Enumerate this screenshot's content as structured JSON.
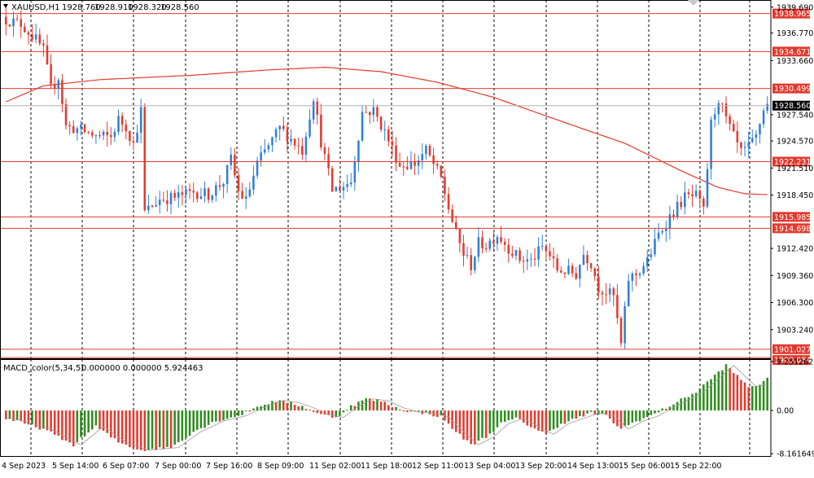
{
  "symbol": {
    "label": "XAUUSD,H1",
    "open": "1928.760",
    "high": "1928.910",
    "low": "1928.320",
    "close": "1928.560"
  },
  "macd": {
    "label": "MACD_color(5,34,5)",
    "values_text": "0.000000 0.000000 5.924463",
    "axis_labels": [
      "9.251262",
      "0.00",
      "-8.161649"
    ]
  },
  "colors": {
    "bull": "#2f7fd6",
    "bear": "#e23a2e",
    "hist_up": "#2e8b1e",
    "hist_down": "#e23a2e",
    "level_line": "#e23a2e",
    "ma": "#e23a2e",
    "grid": "#000000",
    "current_price_bg": "#000000"
  },
  "chart_data": {
    "type": "candlestick",
    "timeframe": "H1",
    "price_axis_labels": [
      "1939.690",
      "1936.770",
      "1933.660",
      "1927.540",
      "1924.570",
      "1921.510",
      "1918.450",
      "1912.420",
      "1909.360",
      "1906.300",
      "1903.240"
    ],
    "price_range": [
      1900.0,
      1940.5
    ],
    "time_axis_labels": [
      "4 Sep 2023",
      "5 Sep 14:00",
      "6 Sep 07:00",
      "7 Sep 00:00",
      "7 Sep 16:00",
      "8 Sep 09:00",
      "11 Sep 02:00",
      "11 Sep 18:00",
      "12 Sep 11:00",
      "13 Sep 04:00",
      "13 Sep 20:00",
      "14 Sep 13:00",
      "15 Sep 06:00",
      "15 Sep 22:00"
    ],
    "horizontal_levels": [
      {
        "price": 1938.965,
        "label": "1938.965"
      },
      {
        "price": 1934.671,
        "label": "1934.671"
      },
      {
        "price": 1930.499,
        "label": "1930.499"
      },
      {
        "price": 1922.231,
        "label": "1922.231"
      },
      {
        "price": 1915.985,
        "label": "1915.985"
      },
      {
        "price": 1914.698,
        "label": "1914.698"
      },
      {
        "price": 1901.027,
        "label": "1901.027"
      },
      {
        "price": 1900.084,
        "label": "1900.084"
      }
    ],
    "current_price": {
      "price": 1928.56,
      "label": "1928.560"
    },
    "close_path": [
      [
        0,
        1938.3
      ],
      [
        4,
        1937.8
      ],
      [
        8,
        1936.0
      ],
      [
        10,
        1934.8
      ],
      [
        12,
        1930.4
      ],
      [
        14,
        1931.8
      ],
      [
        16,
        1926.2
      ],
      [
        20,
        1925.8
      ],
      [
        24,
        1925.1
      ],
      [
        28,
        1925.0
      ],
      [
        30,
        1927.0
      ],
      [
        32,
        1926.2
      ],
      [
        34,
        1924.2
      ],
      [
        36,
        1928.0
      ],
      [
        37,
        1916.5
      ],
      [
        41,
        1918.0
      ],
      [
        45,
        1918.2
      ],
      [
        50,
        1918.8
      ],
      [
        54,
        1918.5
      ],
      [
        58,
        1920.0
      ],
      [
        60,
        1922.5
      ],
      [
        62,
        1918.8
      ],
      [
        64,
        1917.8
      ],
      [
        67,
        1922.0
      ],
      [
        70,
        1924.0
      ],
      [
        73,
        1926.0
      ],
      [
        76,
        1924.8
      ],
      [
        79,
        1923.5
      ],
      [
        82,
        1929.6
      ],
      [
        84,
        1924.5
      ],
      [
        87,
        1919.0
      ],
      [
        90,
        1919.5
      ],
      [
        92,
        1920.0
      ],
      [
        95,
        1927.8
      ],
      [
        98,
        1928.0
      ],
      [
        101,
        1925.6
      ],
      [
        105,
        1921.8
      ],
      [
        109,
        1922.0
      ],
      [
        112,
        1923.5
      ],
      [
        116,
        1920.3
      ],
      [
        118,
        1917.0
      ],
      [
        120,
        1914.0
      ],
      [
        122,
        1911.8
      ],
      [
        124,
        1910.5
      ],
      [
        126,
        1913.0
      ],
      [
        128,
        1912.8
      ],
      [
        131,
        1914.0
      ],
      [
        134,
        1912.5
      ],
      [
        137,
        1911.2
      ],
      [
        140,
        1911.0
      ],
      [
        143,
        1912.5
      ],
      [
        145,
        1911.6
      ],
      [
        147,
        1910.0
      ],
      [
        150,
        1909.8
      ],
      [
        152,
        1909.5
      ],
      [
        154,
        1911.8
      ],
      [
        156,
        1910.8
      ],
      [
        158,
        1908.0
      ],
      [
        160,
        1907.5
      ],
      [
        162,
        1907.0
      ],
      [
        164,
        1901.5
      ],
      [
        166,
        1909.0
      ],
      [
        168,
        1909.5
      ],
      [
        171,
        1911.0
      ],
      [
        174,
        1914.0
      ],
      [
        177,
        1916.0
      ],
      [
        181,
        1918.2
      ],
      [
        184,
        1918.3
      ],
      [
        186,
        1916.6
      ],
      [
        188,
        1926.5
      ],
      [
        190,
        1929.4
      ],
      [
        192,
        1927.0
      ],
      [
        194,
        1925.0
      ],
      [
        196,
        1923.2
      ],
      [
        198,
        1923.8
      ],
      [
        200,
        1925.0
      ],
      [
        202,
        1928.2
      ],
      [
        203,
        1928.6
      ]
    ],
    "moving_average_path": [
      [
        0,
        1929.0
      ],
      [
        10,
        1930.8
      ],
      [
        25,
        1931.5
      ],
      [
        50,
        1932.0
      ],
      [
        70,
        1932.6
      ],
      [
        85,
        1932.9
      ],
      [
        100,
        1932.4
      ],
      [
        115,
        1931.2
      ],
      [
        130,
        1929.5
      ],
      [
        150,
        1926.5
      ],
      [
        165,
        1924.3
      ],
      [
        180,
        1921.2
      ],
      [
        190,
        1919.3
      ],
      [
        197,
        1918.6
      ],
      [
        203,
        1918.5
      ]
    ],
    "macd_histogram_path": [
      [
        0,
        -1.5
      ],
      [
        10,
        -3.5
      ],
      [
        18,
        -6.5
      ],
      [
        24,
        -3.0
      ],
      [
        30,
        -6.0
      ],
      [
        36,
        -7.5
      ],
      [
        44,
        -7.0
      ],
      [
        50,
        -4.0
      ],
      [
        56,
        -2.0
      ],
      [
        62,
        -1.0
      ],
      [
        68,
        1.0
      ],
      [
        72,
        1.8
      ],
      [
        76,
        1.5
      ],
      [
        80,
        0.5
      ],
      [
        84,
        -0.8
      ],
      [
        88,
        -1.3
      ],
      [
        92,
        0.8
      ],
      [
        96,
        2.2
      ],
      [
        100,
        1.8
      ],
      [
        104,
        0.5
      ],
      [
        108,
        -0.3
      ],
      [
        112,
        -0.5
      ],
      [
        116,
        -1.2
      ],
      [
        120,
        -4.0
      ],
      [
        124,
        -6.5
      ],
      [
        128,
        -5.0
      ],
      [
        132,
        -2.5
      ],
      [
        136,
        -1.5
      ],
      [
        140,
        -3.0
      ],
      [
        144,
        -4.5
      ],
      [
        148,
        -2.5
      ],
      [
        152,
        -1.5
      ],
      [
        156,
        -0.5
      ],
      [
        160,
        -1.0
      ],
      [
        164,
        -3.5
      ],
      [
        168,
        -2.0
      ],
      [
        172,
        -1.0
      ],
      [
        176,
        0.5
      ],
      [
        180,
        2.0
      ],
      [
        184,
        3.5
      ],
      [
        188,
        6.0
      ],
      [
        192,
        8.5
      ],
      [
        195,
        6.5
      ],
      [
        198,
        4.5
      ],
      [
        201,
        5.0
      ],
      [
        203,
        5.9
      ]
    ]
  }
}
